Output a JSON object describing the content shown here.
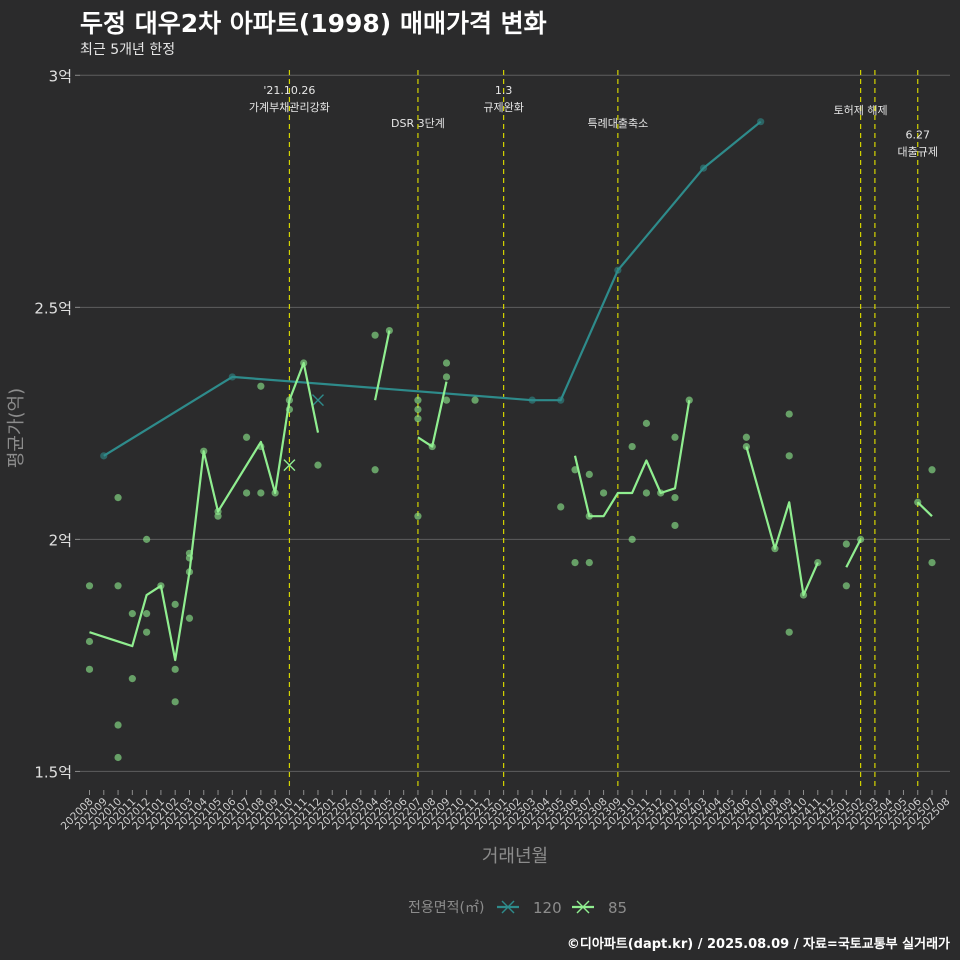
{
  "header": {
    "title": "두정 대우2차 아파트(1998) 매매가격 변화",
    "subtitle": "최근 5개년 한정"
  },
  "footer": {
    "caption": "©디아파트(dapt.kr) / 2025.08.09 / 자료=국토교통부 실거래가"
  },
  "colors": {
    "background": "#2b2b2c",
    "grid": "#5e5e5e",
    "series_120": "#2e8b8b",
    "series_85": "#90ee90",
    "events": "#d4d400",
    "text": "#e0e0e0",
    "muted": "#8c8c8c"
  },
  "chart_data": {
    "type": "line",
    "xlabel": "거래년월",
    "ylabel": "평균가(억)",
    "y_ticks": [
      1.5,
      2,
      2.5,
      3
    ],
    "y_tick_labels": [
      "1.5억",
      "2억",
      "2.5억",
      "3억"
    ],
    "ylim": [
      1.46,
      3.02
    ],
    "x_ticks": [
      "202008",
      "202009",
      "202010",
      "202011",
      "202012",
      "202101",
      "202102",
      "202103",
      "202104",
      "202105",
      "202106",
      "202107",
      "202108",
      "202109",
      "202110",
      "202111",
      "202112",
      "202201",
      "202202",
      "202203",
      "202204",
      "202205",
      "202206",
      "202207",
      "202208",
      "202209",
      "202210",
      "202211",
      "202212",
      "202301",
      "202302",
      "202303",
      "202304",
      "202305",
      "202306",
      "202307",
      "202308",
      "202309",
      "202310",
      "202311",
      "202312",
      "202401",
      "202402",
      "202403",
      "202404",
      "202405",
      "202406",
      "202407",
      "202408",
      "202409",
      "202410",
      "202411",
      "202412",
      "202501",
      "202502",
      "202503",
      "202504",
      "202505",
      "202506",
      "202507",
      "202508"
    ],
    "legend": {
      "title": "전용면적(㎡)",
      "position": "bottom",
      "entries": [
        "120",
        "85"
      ]
    },
    "grid": true,
    "series": [
      {
        "name": "120",
        "segments": [
          [
            [
              "202009",
              2.18
            ],
            [
              "202106",
              2.35
            ],
            [
              "202303",
              2.3
            ],
            [
              "202305",
              2.3
            ],
            [
              "202309",
              2.58
            ],
            [
              "202403",
              2.8
            ],
            [
              "202407",
              2.9
            ]
          ]
        ],
        "points": [
          [
            "202009",
            2.18
          ],
          [
            "202106",
            2.35
          ],
          [
            "202303",
            2.3
          ],
          [
            "202305",
            2.3
          ],
          [
            "202309",
            2.58
          ],
          [
            "202403",
            2.8
          ],
          [
            "202407",
            2.9
          ]
        ],
        "marker_points": [
          [
            "202112",
            2.3
          ]
        ]
      },
      {
        "name": "85",
        "segments": [
          [
            [
              "202008",
              1.8
            ],
            [
              "202011",
              1.77
            ],
            [
              "202012",
              1.88
            ],
            [
              "202101",
              1.9
            ],
            [
              "202102",
              1.74
            ],
            [
              "202103",
              1.93
            ],
            [
              "202104",
              2.19
            ],
            [
              "202105",
              2.06
            ],
            [
              "202108",
              2.21
            ],
            [
              "202109",
              2.1
            ],
            [
              "202110",
              2.3
            ],
            [
              "202111",
              2.38
            ],
            [
              "202112",
              2.23
            ]
          ],
          [
            [
              "202204",
              2.3
            ],
            [
              "202205",
              2.45
            ]
          ],
          [
            [
              "202207",
              2.22
            ],
            [
              "202208",
              2.2
            ],
            [
              "202209",
              2.34
            ]
          ],
          [
            [
              "202306",
              2.18
            ],
            [
              "202307",
              2.05
            ],
            [
              "202308",
              2.05
            ],
            [
              "202309",
              2.1
            ],
            [
              "202310",
              2.1
            ],
            [
              "202311",
              2.17
            ],
            [
              "202312",
              2.1
            ],
            [
              "202401",
              2.11
            ],
            [
              "202402",
              2.3
            ]
          ],
          [
            [
              "202406",
              2.2
            ],
            [
              "202408",
              1.98
            ],
            [
              "202409",
              2.08
            ],
            [
              "202410",
              1.88
            ],
            [
              "202411",
              1.95
            ]
          ],
          [
            [
              "202501",
              1.94
            ],
            [
              "202502",
              2.0
            ]
          ],
          [
            [
              "202506",
              2.08
            ],
            [
              "202507",
              2.05
            ]
          ]
        ],
        "points": [
          [
            "202008",
            1.9
          ],
          [
            "202008",
            1.78
          ],
          [
            "202008",
            1.72
          ],
          [
            "202010",
            2.09
          ],
          [
            "202010",
            1.9
          ],
          [
            "202010",
            1.6
          ],
          [
            "202010",
            1.53
          ],
          [
            "202011",
            1.84
          ],
          [
            "202011",
            1.7
          ],
          [
            "202012",
            2.0
          ],
          [
            "202012",
            1.84
          ],
          [
            "202012",
            1.8
          ],
          [
            "202101",
            1.9
          ],
          [
            "202102",
            1.86
          ],
          [
            "202102",
            1.72
          ],
          [
            "202102",
            1.65
          ],
          [
            "202103",
            1.97
          ],
          [
            "202103",
            1.96
          ],
          [
            "202103",
            1.93
          ],
          [
            "202103",
            1.83
          ],
          [
            "202104",
            2.19
          ],
          [
            "202105",
            2.06
          ],
          [
            "202105",
            2.05
          ],
          [
            "202107",
            2.22
          ],
          [
            "202107",
            2.1
          ],
          [
            "202108",
            2.33
          ],
          [
            "202108",
            2.2
          ],
          [
            "202108",
            2.1
          ],
          [
            "202109",
            2.1
          ],
          [
            "202110",
            2.3
          ],
          [
            "202110",
            2.28
          ],
          [
            "202111",
            2.38
          ],
          [
            "202112",
            2.16
          ],
          [
            "202204",
            2.44
          ],
          [
            "202204",
            2.15
          ],
          [
            "202205",
            2.45
          ],
          [
            "202207",
            2.3
          ],
          [
            "202207",
            2.28
          ],
          [
            "202207",
            2.26
          ],
          [
            "202207",
            2.05
          ],
          [
            "202208",
            2.2
          ],
          [
            "202209",
            2.38
          ],
          [
            "202209",
            2.35
          ],
          [
            "202209",
            2.3
          ],
          [
            "202211",
            2.3
          ],
          [
            "202305",
            2.07
          ],
          [
            "202306",
            2.15
          ],
          [
            "202306",
            1.95
          ],
          [
            "202307",
            2.14
          ],
          [
            "202307",
            2.05
          ],
          [
            "202307",
            1.95
          ],
          [
            "202308",
            2.1
          ],
          [
            "202310",
            2.2
          ],
          [
            "202310",
            2.0
          ],
          [
            "202311",
            2.25
          ],
          [
            "202311",
            2.1
          ],
          [
            "202312",
            2.1
          ],
          [
            "202401",
            2.22
          ],
          [
            "202401",
            2.09
          ],
          [
            "202401",
            2.03
          ],
          [
            "202402",
            2.3
          ],
          [
            "202406",
            2.22
          ],
          [
            "202406",
            2.2
          ],
          [
            "202408",
            1.98
          ],
          [
            "202409",
            2.27
          ],
          [
            "202409",
            2.18
          ],
          [
            "202409",
            1.8
          ],
          [
            "202410",
            1.88
          ],
          [
            "202411",
            1.95
          ],
          [
            "202501",
            1.99
          ],
          [
            "202501",
            1.9
          ],
          [
            "202502",
            2.0
          ],
          [
            "202506",
            2.08
          ],
          [
            "202507",
            2.15
          ],
          [
            "202507",
            1.95
          ]
        ],
        "marker_points": [
          [
            "202110",
            2.16
          ]
        ]
      }
    ],
    "events": [
      {
        "x": 14.0,
        "lines": [
          "'21.10.26",
          "가계부채관리강화"
        ],
        "row": 0
      },
      {
        "x": 23.0,
        "lines": [
          "DSR 3단계"
        ],
        "row": 1
      },
      {
        "x": 29.0,
        "lines": [
          "1.3",
          "규제완화"
        ],
        "row": 0
      },
      {
        "x": 37.0,
        "lines": [
          "특례대출축소"
        ],
        "row": 1
      },
      {
        "x": 54.0,
        "lines": [
          "토허제 해제"
        ],
        "row": 0.6
      },
      {
        "x": 55.0,
        "lines": [],
        "row": 0
      },
      {
        "x": 58.0,
        "lines": [
          "6.27",
          "대출규제"
        ],
        "row": 1.35
      }
    ]
  }
}
